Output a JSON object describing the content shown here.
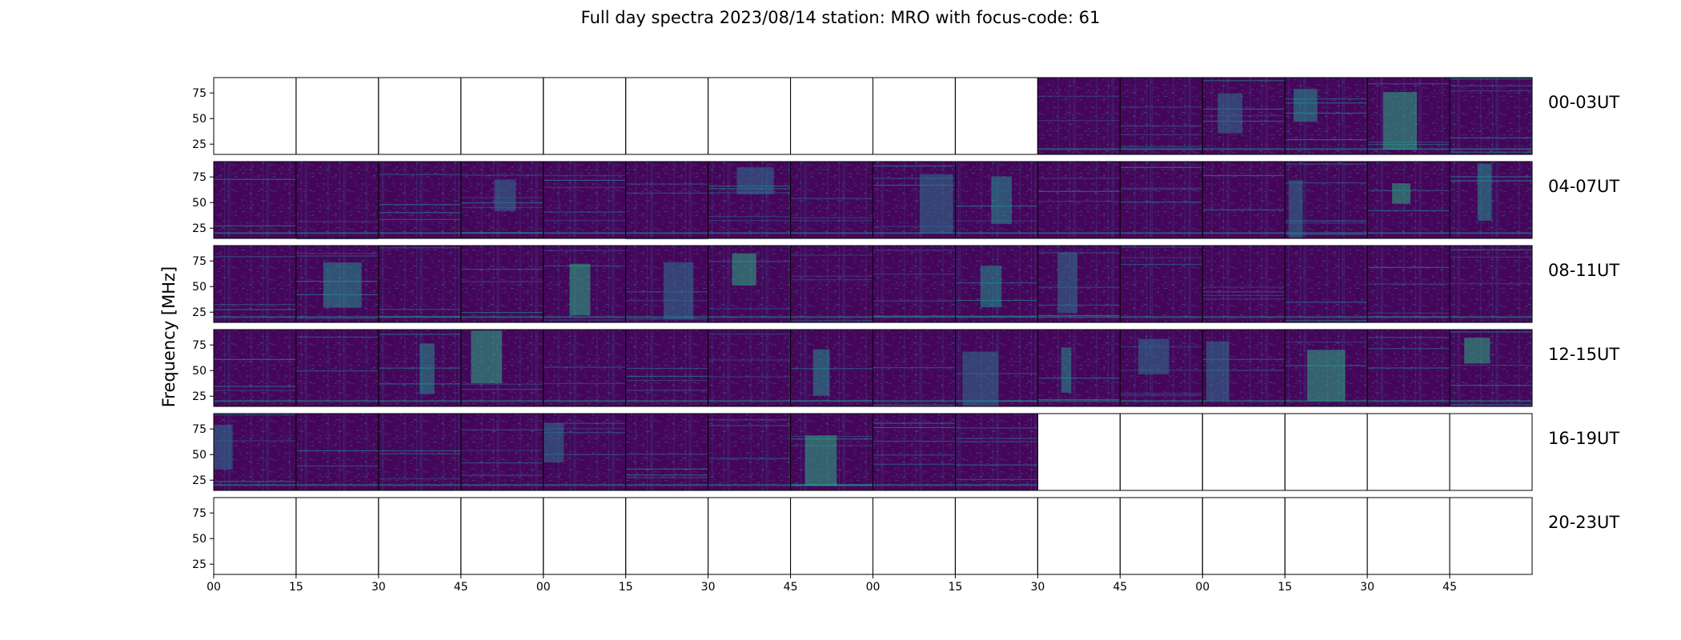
{
  "chart_data": {
    "type": "heatmap",
    "title": "Full day spectra 2023/08/14 station: MRO with focus-code: 61",
    "ylabel": "Frequency [MHz]",
    "xlabel": "",
    "y_ticks": [
      "25",
      "50",
      "75"
    ],
    "y_tick_values": [
      25,
      50,
      75
    ],
    "ylim": [
      15,
      90
    ],
    "x_ticks": [
      "00",
      "15",
      "30",
      "45",
      "00",
      "15",
      "30",
      "45",
      "00",
      "15",
      "30",
      "45",
      "00",
      "15",
      "30",
      "45"
    ],
    "rows": [
      {
        "label": "00-03UT",
        "filled": [
          false,
          false,
          false,
          false,
          false,
          false,
          false,
          false,
          false,
          false,
          true,
          true,
          true,
          true,
          true,
          true
        ]
      },
      {
        "label": "04-07UT",
        "filled": [
          true,
          true,
          true,
          true,
          true,
          true,
          true,
          true,
          true,
          true,
          true,
          true,
          true,
          true,
          true,
          true
        ]
      },
      {
        "label": "08-11UT",
        "filled": [
          true,
          true,
          true,
          true,
          true,
          true,
          true,
          true,
          true,
          true,
          true,
          true,
          true,
          true,
          true,
          true
        ]
      },
      {
        "label": "12-15UT",
        "filled": [
          true,
          true,
          true,
          true,
          true,
          true,
          true,
          true,
          true,
          true,
          true,
          true,
          true,
          true,
          true,
          true
        ]
      },
      {
        "label": "16-19UT",
        "filled": [
          true,
          true,
          true,
          true,
          true,
          true,
          true,
          true,
          true,
          true,
          false,
          false,
          false,
          false,
          false,
          false
        ]
      },
      {
        "label": "20-23UT",
        "filled": [
          false,
          false,
          false,
          false,
          false,
          false,
          false,
          false,
          false,
          false,
          false,
          false,
          false,
          false,
          false,
          false
        ]
      }
    ],
    "colormap": [
      "#440154",
      "#472d7b",
      "#3b528b",
      "#2c728e",
      "#21918c",
      "#28ae80",
      "#5ec962",
      "#addc30",
      "#fde725"
    ],
    "grid": false,
    "legend": "none"
  }
}
